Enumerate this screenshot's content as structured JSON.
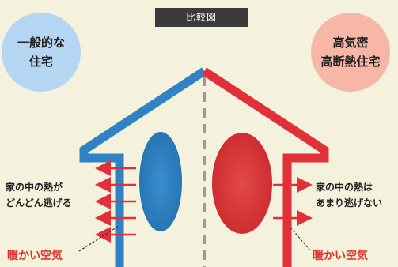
{
  "title_badge": "比較図",
  "left": {
    "circle_lines": [
      "一般的な",
      "住宅"
    ],
    "heat_lines": [
      "家の中の熱が",
      "どんどん逃げる"
    ],
    "warm_air": "暖かい空気",
    "color": "#2f82c4",
    "blob_color": "#2f7fbe"
  },
  "right": {
    "circle_lines": [
      "高気密",
      "高断熱住宅"
    ],
    "heat_lines": [
      "家の中の熱は",
      "あまり逃げない"
    ],
    "warm_air": "暖かい空気",
    "color": "#e2303a",
    "blob_color": "#d9383b"
  }
}
